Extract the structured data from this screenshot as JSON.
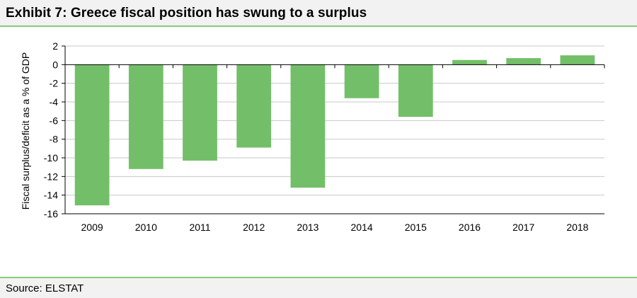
{
  "header": {
    "title": "Exhibit 7: Greece fiscal position has swung to a surplus"
  },
  "footer": {
    "source": "Source: ELSTAT"
  },
  "colors": {
    "bar": "#73bf69",
    "accent_line": "#8cc97a",
    "grid": "#c8c8c8"
  },
  "chart_data": {
    "type": "bar",
    "title": "",
    "xlabel": "",
    "ylabel": "Fiscal surplus/deficit as a % of GDP",
    "categories": [
      "2009",
      "2010",
      "2011",
      "2012",
      "2013",
      "2014",
      "2015",
      "2016",
      "2017",
      "2018"
    ],
    "values": [
      -15.1,
      -11.2,
      -10.3,
      -8.9,
      -13.2,
      -3.6,
      -5.6,
      0.5,
      0.7,
      1.0
    ],
    "ylim": [
      -16,
      2
    ],
    "yticks": [
      2,
      0,
      -2,
      -4,
      -6,
      -8,
      -10,
      -12,
      -14,
      -16
    ],
    "grid": true,
    "legend": "none"
  }
}
